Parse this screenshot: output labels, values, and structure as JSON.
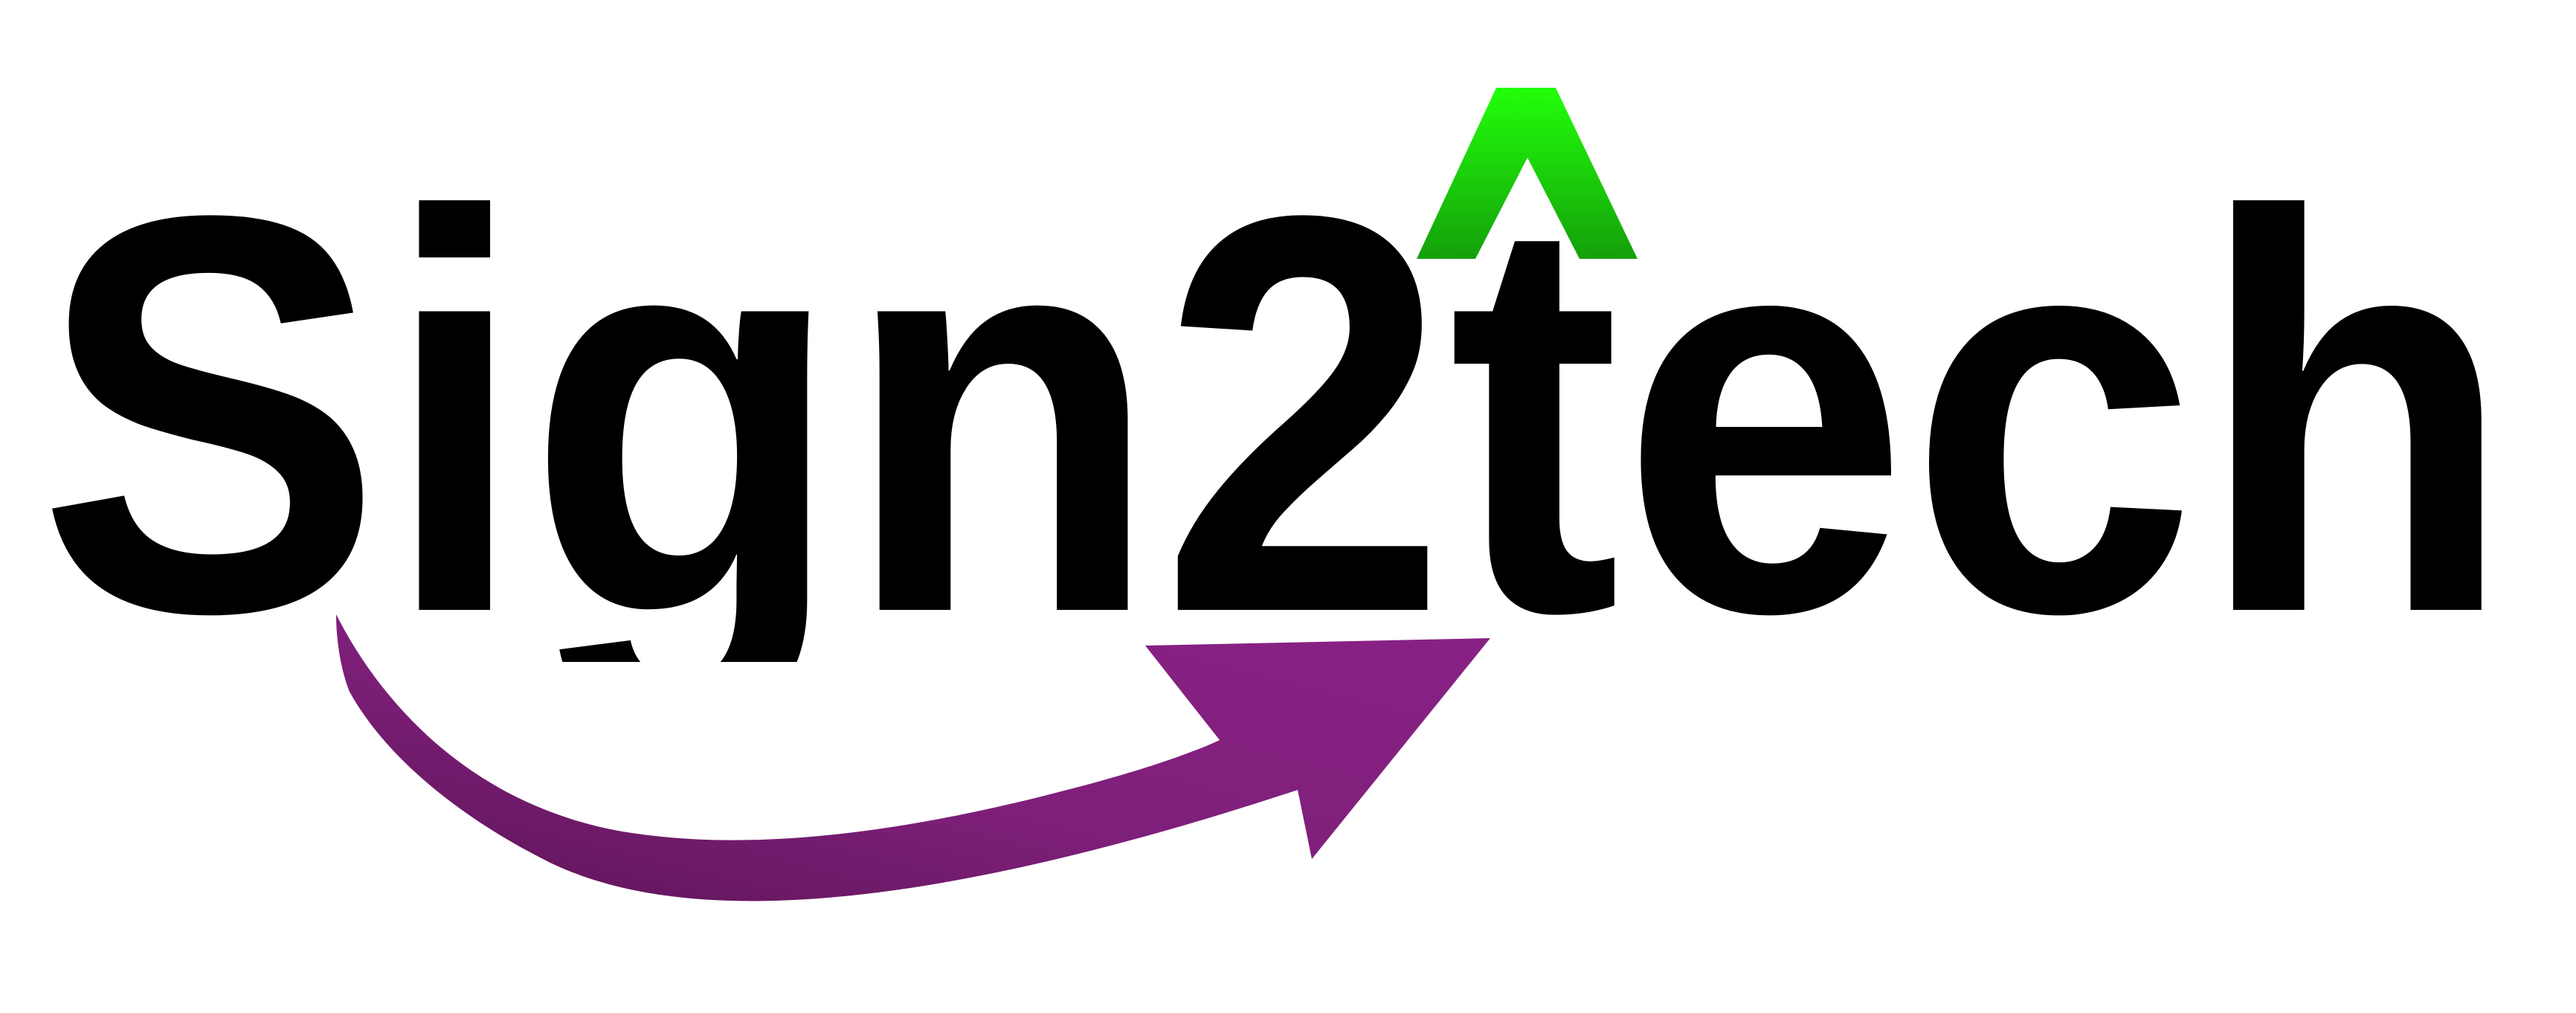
{
  "logo": {
    "wordmark": "Sign2tech",
    "text_color": "#000000",
    "caret_color_top": "#22ff0a",
    "caret_color_bottom": "#14a00a",
    "arrow_color_dark": "#5c1455",
    "arrow_color_light": "#8a2186"
  }
}
